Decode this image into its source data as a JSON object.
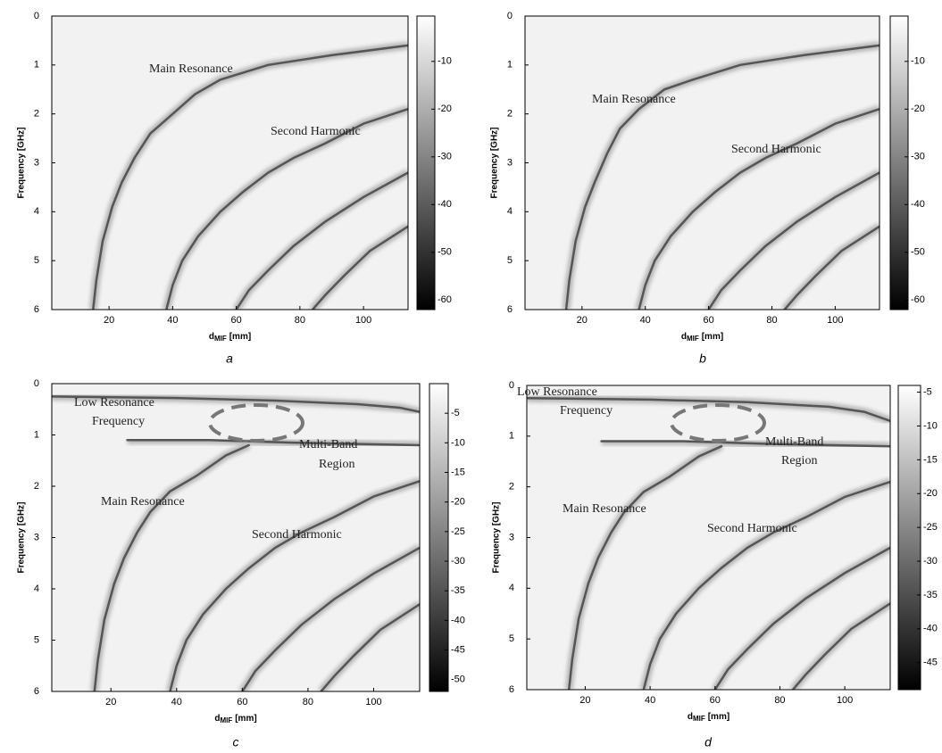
{
  "chart_data": [
    {
      "type": "heatmap",
      "label": "a",
      "x_label": "d",
      "x_label_sub": "MIF",
      "x_label_unit": "[mm]",
      "y_label": "Frequency [GHz]",
      "xlim": [
        2,
        114
      ],
      "xticks": [
        20,
        40,
        60,
        80,
        100
      ],
      "ylim": [
        0,
        6
      ],
      "yticks": [
        0,
        1,
        2,
        3,
        4,
        5,
        6
      ],
      "y_inverted": true,
      "clim": [
        -62,
        -0.5
      ],
      "cticks": [
        -10,
        -20,
        -30,
        -40,
        -50,
        -60
      ],
      "cmap_colors": [
        "#000000",
        "#ffffff"
      ],
      "annotations": [
        [
          "Main Resonance"
        ],
        [
          "Second Harmonic"
        ]
      ],
      "curves": [
        {
          "x": [
            114,
            90,
            70,
            55,
            47,
            40,
            33,
            28,
            24,
            21,
            18,
            16,
            15
          ],
          "y": [
            0.6,
            0.8,
            1.0,
            1.3,
            1.6,
            2.0,
            2.4,
            2.9,
            3.4,
            3.9,
            4.6,
            5.4,
            6.0
          ]
        },
        {
          "x": [
            114,
            100,
            88,
            78,
            70,
            62,
            55,
            48,
            43,
            40,
            38
          ],
          "y": [
            1.9,
            2.2,
            2.6,
            2.9,
            3.2,
            3.6,
            4.0,
            4.5,
            5.0,
            5.5,
            6.0
          ]
        },
        {
          "x": [
            114,
            100,
            88,
            78,
            70,
            64,
            60
          ],
          "y": [
            3.2,
            3.7,
            4.2,
            4.7,
            5.2,
            5.6,
            6.0
          ]
        },
        {
          "x": [
            114,
            102,
            94,
            88,
            84
          ],
          "y": [
            4.3,
            4.8,
            5.3,
            5.7,
            6.0
          ]
        }
      ]
    },
    {
      "type": "heatmap",
      "label": "b",
      "x_label": "d",
      "x_label_sub": "MIF",
      "x_label_unit": "[mm]",
      "y_label": "Frequency [GHz]",
      "xlim": [
        2,
        114
      ],
      "xticks": [
        20,
        40,
        60,
        80,
        100
      ],
      "ylim": [
        0,
        6
      ],
      "yticks": [
        0,
        1,
        2,
        3,
        4,
        5,
        6
      ],
      "y_inverted": true,
      "clim": [
        -62,
        -0.5
      ],
      "cticks": [
        -10,
        -20,
        -30,
        -40,
        -50,
        -60
      ],
      "cmap_colors": [
        "#000000",
        "#ffffff"
      ],
      "annotations": [
        [
          "Main Resonance"
        ],
        [
          "Second Harmonic"
        ]
      ],
      "curves": [
        {
          "x": [
            114,
            90,
            70,
            55,
            46,
            38,
            32,
            28,
            24,
            21,
            18,
            16,
            15
          ],
          "y": [
            0.6,
            0.8,
            1.0,
            1.3,
            1.5,
            1.9,
            2.3,
            2.8,
            3.4,
            3.9,
            4.6,
            5.4,
            6.0
          ]
        },
        {
          "x": [
            114,
            100,
            88,
            78,
            70,
            62,
            55,
            48,
            43,
            40,
            38
          ],
          "y": [
            1.9,
            2.2,
            2.6,
            2.9,
            3.2,
            3.6,
            4.0,
            4.5,
            5.0,
            5.5,
            6.0
          ]
        },
        {
          "x": [
            114,
            100,
            88,
            78,
            70,
            64,
            60
          ],
          "y": [
            3.2,
            3.7,
            4.2,
            4.7,
            5.2,
            5.6,
            6.0
          ]
        },
        {
          "x": [
            114,
            102,
            94,
            88,
            84
          ],
          "y": [
            4.3,
            4.8,
            5.3,
            5.7,
            6.0
          ]
        }
      ]
    },
    {
      "type": "heatmap",
      "label": "c",
      "x_label": "d",
      "x_label_sub": "MIF",
      "x_label_unit": "[mm]",
      "y_label": "Frequency [GHz]",
      "xlim": [
        2,
        114
      ],
      "xticks": [
        20,
        40,
        60,
        80,
        100
      ],
      "ylim": [
        0,
        6
      ],
      "yticks": [
        0,
        1,
        2,
        3,
        4,
        5,
        6
      ],
      "y_inverted": true,
      "clim": [
        -52,
        0
      ],
      "cticks": [
        -5,
        -10,
        -15,
        -20,
        -25,
        -30,
        -35,
        -40,
        -45,
        -50
      ],
      "cmap_colors": [
        "#000000",
        "#ffffff"
      ],
      "annotations": [
        [
          "Low Resonance",
          "Frequency"
        ],
        [
          "Multi-Band",
          "Region"
        ],
        [
          "Main Resonance"
        ],
        [
          "Second Harmonic"
        ]
      ],
      "curves": [
        {
          "x": [
            2,
            40,
            70,
            95,
            108,
            114
          ],
          "y": [
            0.25,
            0.28,
            0.33,
            0.4,
            0.47,
            0.55
          ]
        },
        {
          "x": [
            25,
            50,
            75,
            114
          ],
          "y": [
            1.1,
            1.1,
            1.15,
            1.2
          ]
        },
        {
          "x": [
            62,
            55,
            46,
            38,
            32,
            28,
            24,
            21,
            18,
            16,
            15
          ],
          "y": [
            1.2,
            1.4,
            1.8,
            2.1,
            2.5,
            2.9,
            3.4,
            3.9,
            4.6,
            5.4,
            6.0
          ]
        },
        {
          "x": [
            114,
            100,
            88,
            78,
            70,
            62,
            55,
            48,
            43,
            40,
            38
          ],
          "y": [
            1.9,
            2.2,
            2.6,
            2.9,
            3.2,
            3.6,
            4.0,
            4.5,
            5.0,
            5.5,
            6.0
          ]
        },
        {
          "x": [
            114,
            100,
            88,
            78,
            70,
            64,
            60
          ],
          "y": [
            3.2,
            3.7,
            4.2,
            4.7,
            5.2,
            5.6,
            6.0
          ]
        },
        {
          "x": [
            114,
            102,
            94,
            88,
            84
          ],
          "y": [
            4.3,
            4.8,
            5.3,
            5.7,
            6.0
          ]
        }
      ]
    },
    {
      "type": "heatmap",
      "label": "d",
      "x_label": "d",
      "x_label_sub": "MIF",
      "x_label_unit": "[mm]",
      "y_label": "Frequency [GHz]",
      "xlim": [
        2,
        114
      ],
      "xticks": [
        20,
        40,
        60,
        80,
        100
      ],
      "ylim": [
        0,
        6
      ],
      "yticks": [
        0,
        1,
        2,
        3,
        4,
        5,
        6
      ],
      "y_inverted": true,
      "clim": [
        -49,
        -4
      ],
      "cticks": [
        -5,
        -10,
        -15,
        -20,
        -25,
        -30,
        -35,
        -40,
        -45
      ],
      "cmap_colors": [
        "#000000",
        "#ffffff"
      ],
      "annotations": [
        [
          "Low Resonance",
          "Frequency"
        ],
        [
          "Multi-Band",
          "Region"
        ],
        [
          "Main Resonance"
        ],
        [
          "Second Harmonic"
        ]
      ],
      "curves": [
        {
          "x": [
            2,
            40,
            70,
            95,
            106,
            114
          ],
          "y": [
            0.25,
            0.28,
            0.33,
            0.42,
            0.52,
            0.7
          ]
        },
        {
          "x": [
            25,
            50,
            75,
            114
          ],
          "y": [
            1.1,
            1.1,
            1.15,
            1.2
          ]
        },
        {
          "x": [
            62,
            55,
            46,
            38,
            32,
            28,
            24,
            21,
            18,
            16,
            15
          ],
          "y": [
            1.2,
            1.4,
            1.8,
            2.1,
            2.5,
            2.9,
            3.4,
            3.9,
            4.6,
            5.4,
            6.0
          ]
        },
        {
          "x": [
            114,
            100,
            88,
            78,
            70,
            62,
            55,
            48,
            43,
            40,
            38
          ],
          "y": [
            1.9,
            2.2,
            2.6,
            2.9,
            3.2,
            3.6,
            4.0,
            4.5,
            5.0,
            5.5,
            6.0
          ]
        },
        {
          "x": [
            114,
            100,
            88,
            78,
            70,
            64,
            60
          ],
          "y": [
            3.2,
            3.7,
            4.2,
            4.7,
            5.2,
            5.6,
            6.0
          ]
        },
        {
          "x": [
            114,
            102,
            94,
            88,
            84
          ],
          "y": [
            4.3,
            4.8,
            5.3,
            5.7,
            6.0
          ]
        }
      ]
    }
  ]
}
